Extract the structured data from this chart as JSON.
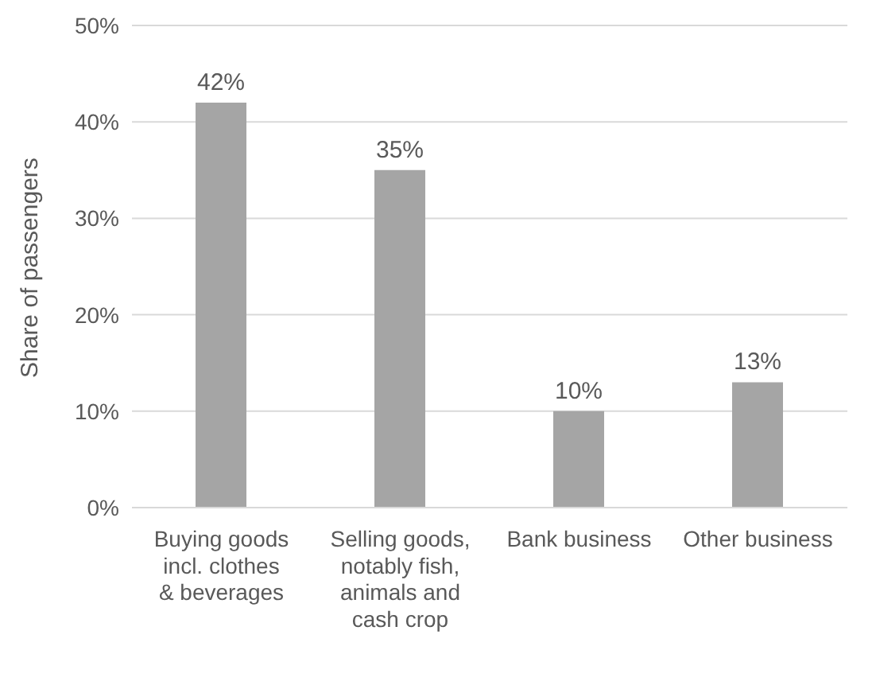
{
  "chart_data": {
    "type": "bar",
    "ylabel": "Share of passengers",
    "categories": [
      "Buying goods incl. clothes & beverages",
      "Selling goods, notably fish, animals and cash crop",
      "Bank business",
      "Other business"
    ],
    "values": [
      42,
      35,
      10,
      13
    ],
    "color": "#a5a5a5",
    "ylim": [
      0,
      50
    ],
    "yticks": [
      {
        "value": 0,
        "label": "0%"
      },
      {
        "value": 10,
        "label": "10%"
      },
      {
        "value": 20,
        "label": "20%"
      },
      {
        "value": 30,
        "label": "30%"
      },
      {
        "value": 40,
        "label": "40%"
      },
      {
        "value": 50,
        "label": "50%"
      }
    ],
    "value_labels": [
      "42%",
      "35%",
      "10%",
      "13%"
    ],
    "grid": "y",
    "legend": false
  }
}
